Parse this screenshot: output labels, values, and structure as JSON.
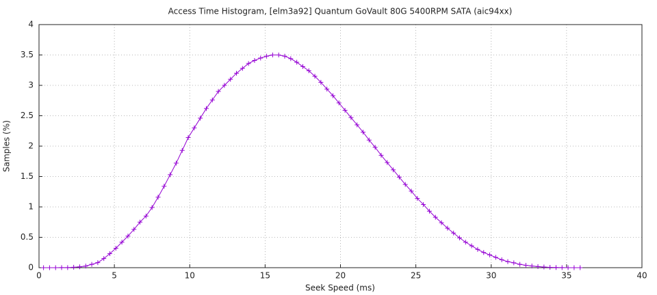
{
  "chart_data": {
    "type": "line",
    "title": "Access Time Histogram, [elm3a92] Quantum GoVault 80G 5400RPM SATA (aic94xx)",
    "x_label": "Seek Speed (ms)",
    "y_label": "Samples (%)",
    "marker": "+",
    "color": "#9400d3",
    "grid": true,
    "xlim": [
      0,
      40
    ],
    "xticks": [
      0,
      5,
      10,
      15,
      20,
      25,
      30,
      35,
      40
    ],
    "ylim": [
      0,
      4
    ],
    "yticks": [
      0,
      0.5,
      1,
      1.5,
      2,
      2.5,
      3,
      3.5,
      4
    ],
    "x": [
      0.3,
      0.7,
      1.1,
      1.5,
      1.9,
      2.3,
      2.7,
      3.1,
      3.5,
      3.9,
      4.3,
      4.7,
      5.1,
      5.5,
      5.9,
      6.3,
      6.7,
      7.1,
      7.5,
      7.9,
      8.3,
      8.7,
      9.1,
      9.5,
      9.9,
      10.3,
      10.7,
      11.1,
      11.5,
      11.9,
      12.3,
      12.7,
      13.1,
      13.5,
      13.9,
      14.3,
      14.7,
      15.1,
      15.5,
      15.9,
      16.3,
      16.7,
      17.1,
      17.5,
      17.9,
      18.3,
      18.7,
      19.1,
      19.5,
      19.9,
      20.3,
      20.7,
      21.1,
      21.5,
      21.9,
      22.3,
      22.7,
      23.1,
      23.5,
      23.9,
      24.3,
      24.7,
      25.1,
      25.5,
      25.9,
      26.3,
      26.7,
      27.1,
      27.5,
      27.9,
      28.3,
      28.7,
      29.1,
      29.5,
      29.9,
      30.3,
      30.7,
      31.1,
      31.5,
      31.9,
      32.3,
      32.7,
      33.1,
      33.5,
      33.9,
      34.3,
      34.7,
      35.1,
      35.5,
      35.9
    ],
    "values": [
      0,
      0,
      0,
      0.001,
      0.002,
      0.007,
      0.014,
      0.027,
      0.055,
      0.083,
      0.15,
      0.23,
      0.32,
      0.42,
      0.52,
      0.63,
      0.75,
      0.85,
      0.99,
      1.16,
      1.34,
      1.53,
      1.72,
      1.93,
      2.14,
      2.3,
      2.46,
      2.62,
      2.76,
      2.9,
      3.0,
      3.1,
      3.2,
      3.28,
      3.36,
      3.41,
      3.45,
      3.48,
      3.5,
      3.5,
      3.48,
      3.44,
      3.38,
      3.31,
      3.24,
      3.15,
      3.05,
      2.94,
      2.83,
      2.71,
      2.59,
      2.47,
      2.35,
      2.23,
      2.1,
      1.98,
      1.85,
      1.73,
      1.61,
      1.49,
      1.37,
      1.26,
      1.14,
      1.04,
      0.93,
      0.83,
      0.74,
      0.65,
      0.57,
      0.49,
      0.42,
      0.36,
      0.3,
      0.25,
      0.21,
      0.17,
      0.13,
      0.1,
      0.08,
      0.055,
      0.04,
      0.028,
      0.018,
      0.011,
      0.006,
      0.003,
      0.001,
      0,
      0,
      0
    ]
  }
}
